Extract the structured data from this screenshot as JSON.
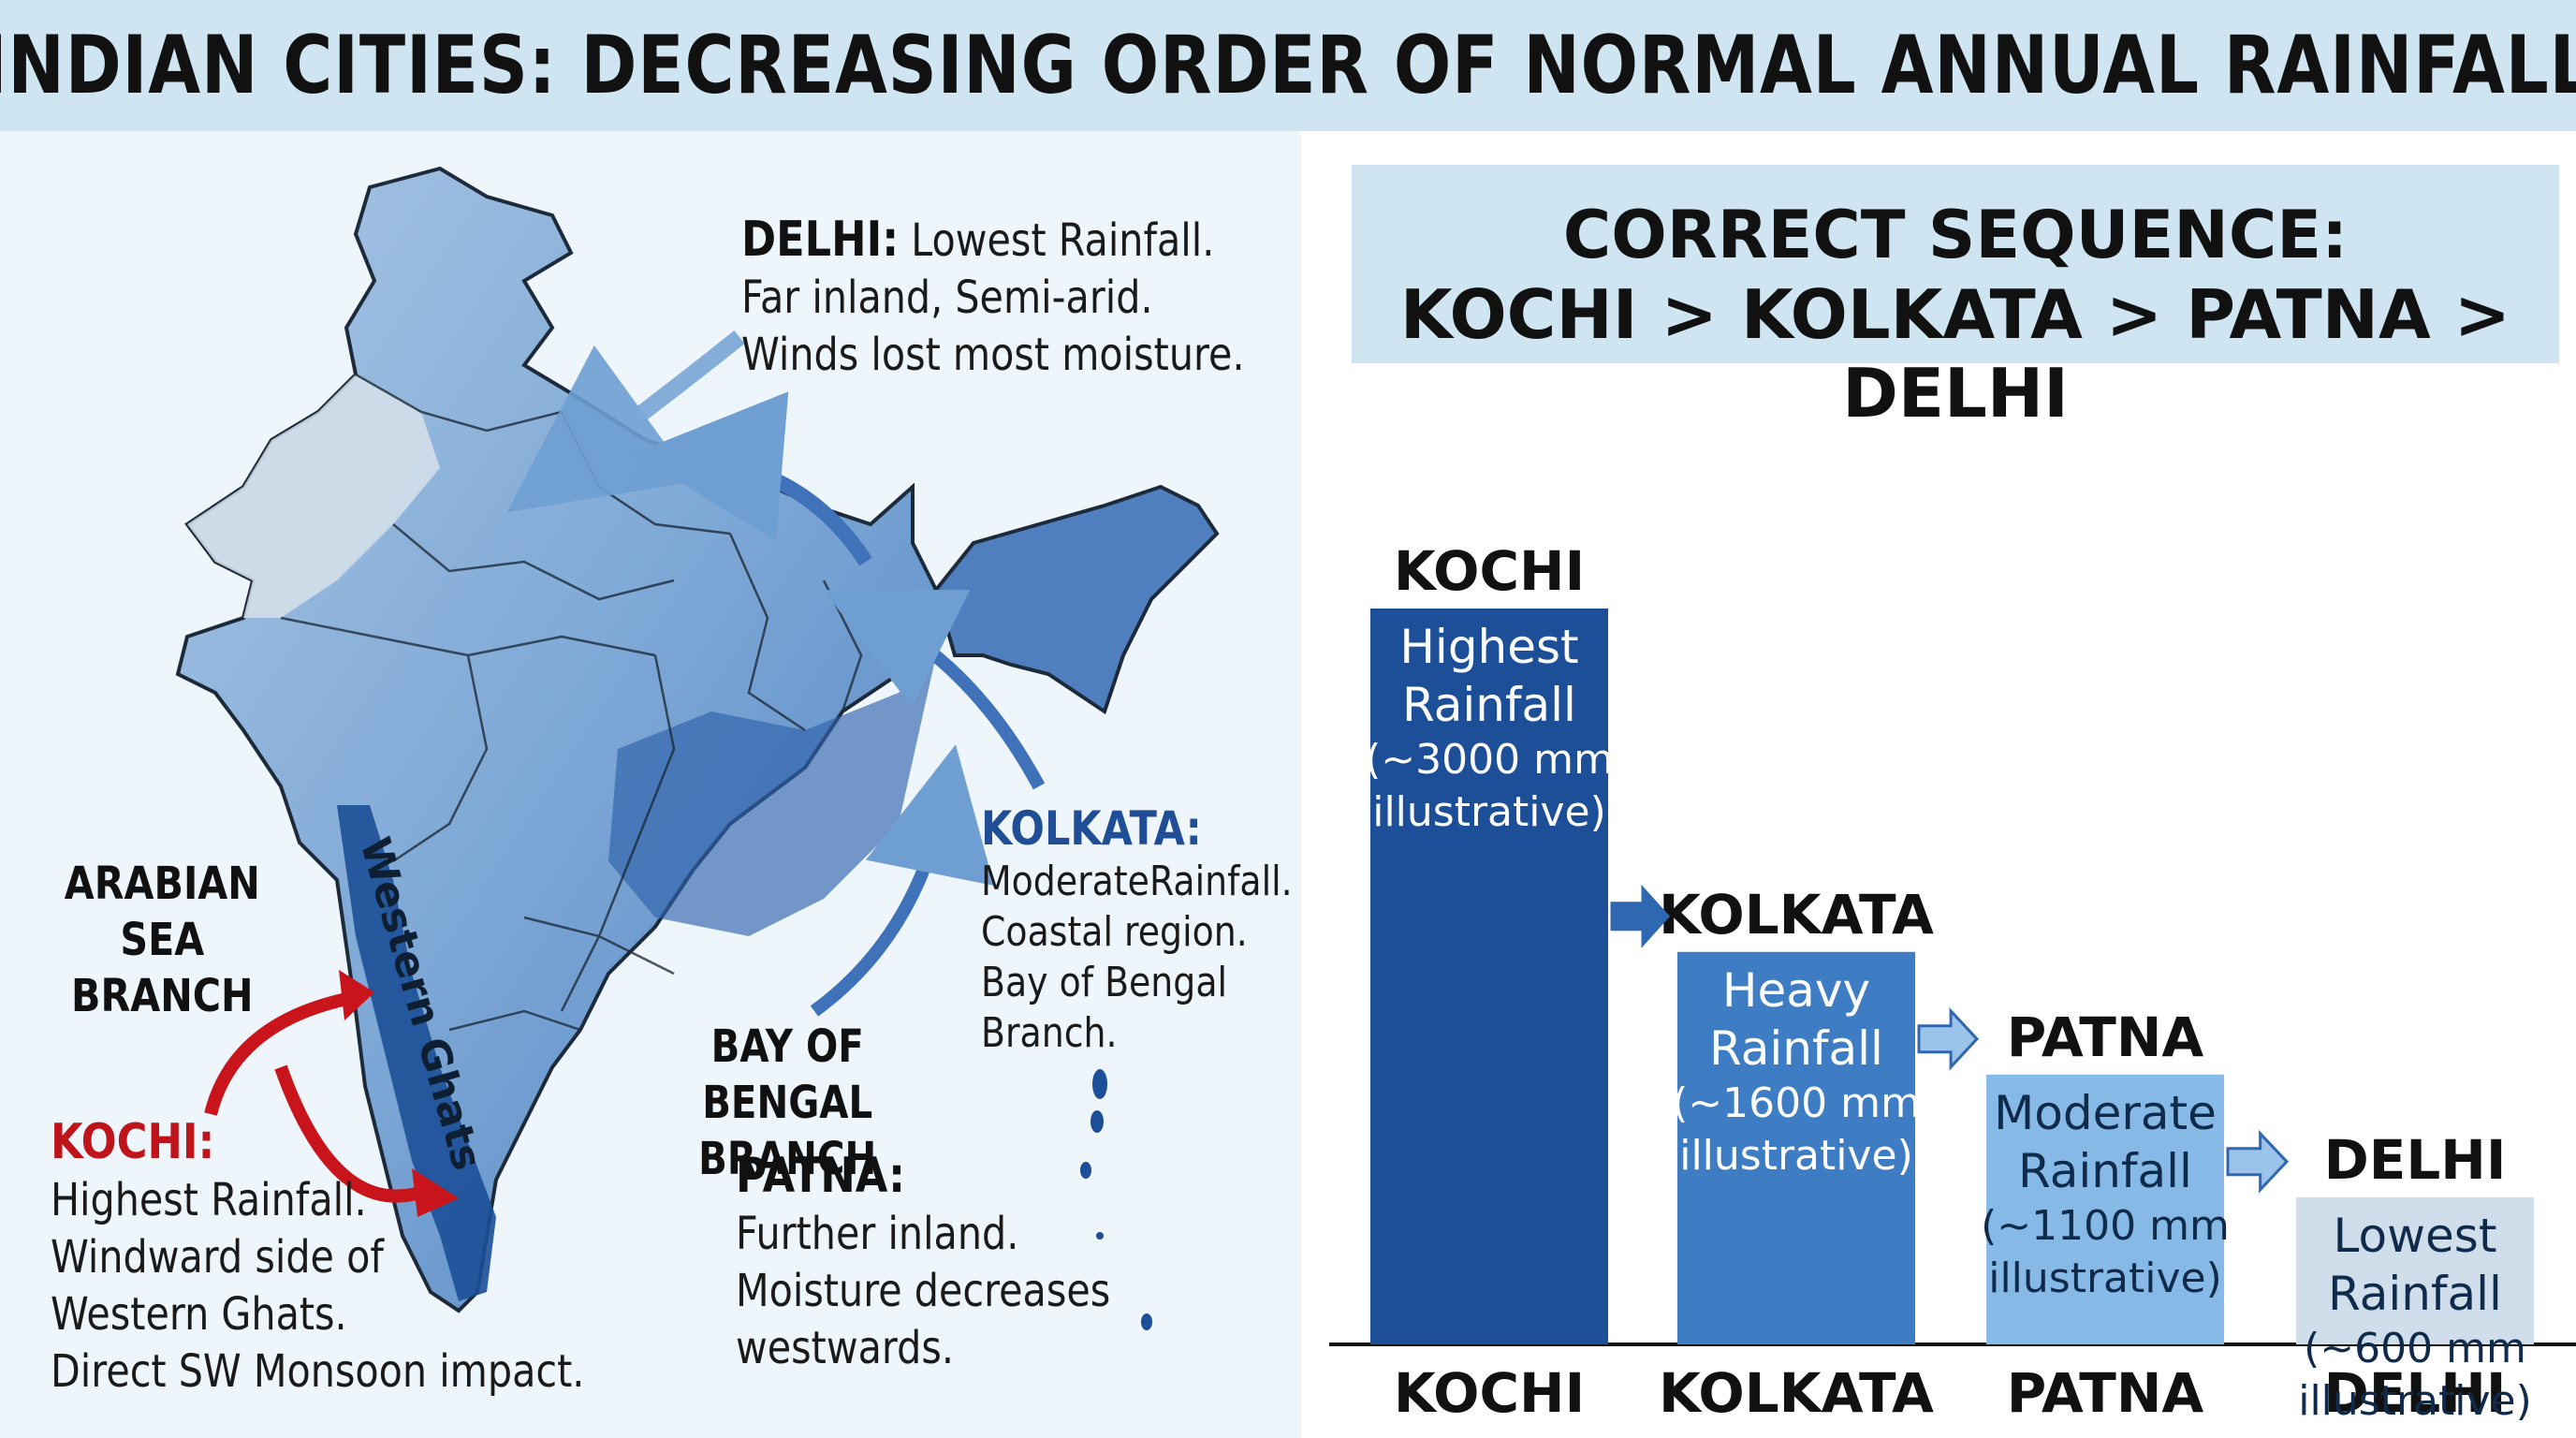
{
  "header": {
    "title": "INDIAN CITIES: DECREASING ORDER OF NORMAL ANNUAL RAINFALL"
  },
  "map": {
    "western_ghats_label": "Western Ghats",
    "arabian_sea_branch": [
      "ARABIAN SEA",
      "BRANCH"
    ],
    "bay_of_bengal_branch": [
      "BAY OF BENGAL",
      "BRANCH"
    ],
    "delhi": {
      "head": "DELHI:",
      "lines": [
        "Lowest Rainfall.",
        "Far inland, Semi-arid.",
        "Winds lost most moisture."
      ]
    },
    "kolkata": {
      "head": "KOLKATA:",
      "lines": [
        "ModerateRainfall.",
        "Coastal region.",
        "Bay of Bengal",
        "Branch."
      ]
    },
    "kochi": {
      "head": "KOCHI:",
      "lines": [
        "Highest Rainfall.",
        "Windward side of",
        "Western Ghats.",
        "Direct SW Monsoon impact."
      ]
    },
    "patna": {
      "head": "PATNA:",
      "lines": [
        "Further inland.",
        "Moisture decreases",
        "westwards."
      ]
    },
    "colors": {
      "kochi_head": "#c0141b",
      "kolkata_head": "#1f4e96",
      "arrow_red": "#c9141b",
      "arrow_blue": "#3a6fb5"
    }
  },
  "sequence": {
    "title": "CORRECT SEQUENCE:",
    "text": "KOCHI > KOLKATA > PATNA > DELHI"
  },
  "chart_data": {
    "type": "bar",
    "categories": [
      "KOCHI",
      "KOLKATA",
      "PATNA",
      "DELHI"
    ],
    "values": [
      3000,
      1600,
      1100,
      600
    ],
    "bar_labels": [
      [
        "Highest",
        "Rainfall",
        "(~3000 mm",
        "illustrative)"
      ],
      [
        "Heavy",
        "Rainfall",
        "(~1600 mm",
        "illustrative)"
      ],
      [
        "Moderate",
        "Rainfall",
        "(~1100 mm",
        "illustrative)"
      ],
      [
        "Lowest",
        "Rainfall",
        "(~600 mm",
        "illustrative)"
      ]
    ],
    "colors": [
      "#1c4f97",
      "#3e7cc3",
      "#86b9e6",
      "#cfdeea"
    ],
    "label_colors": [
      "#ffffff",
      "#ffffff",
      "#0f2a4a",
      "#0f2a4a"
    ],
    "arrow_color": "#2f67b1"
  }
}
